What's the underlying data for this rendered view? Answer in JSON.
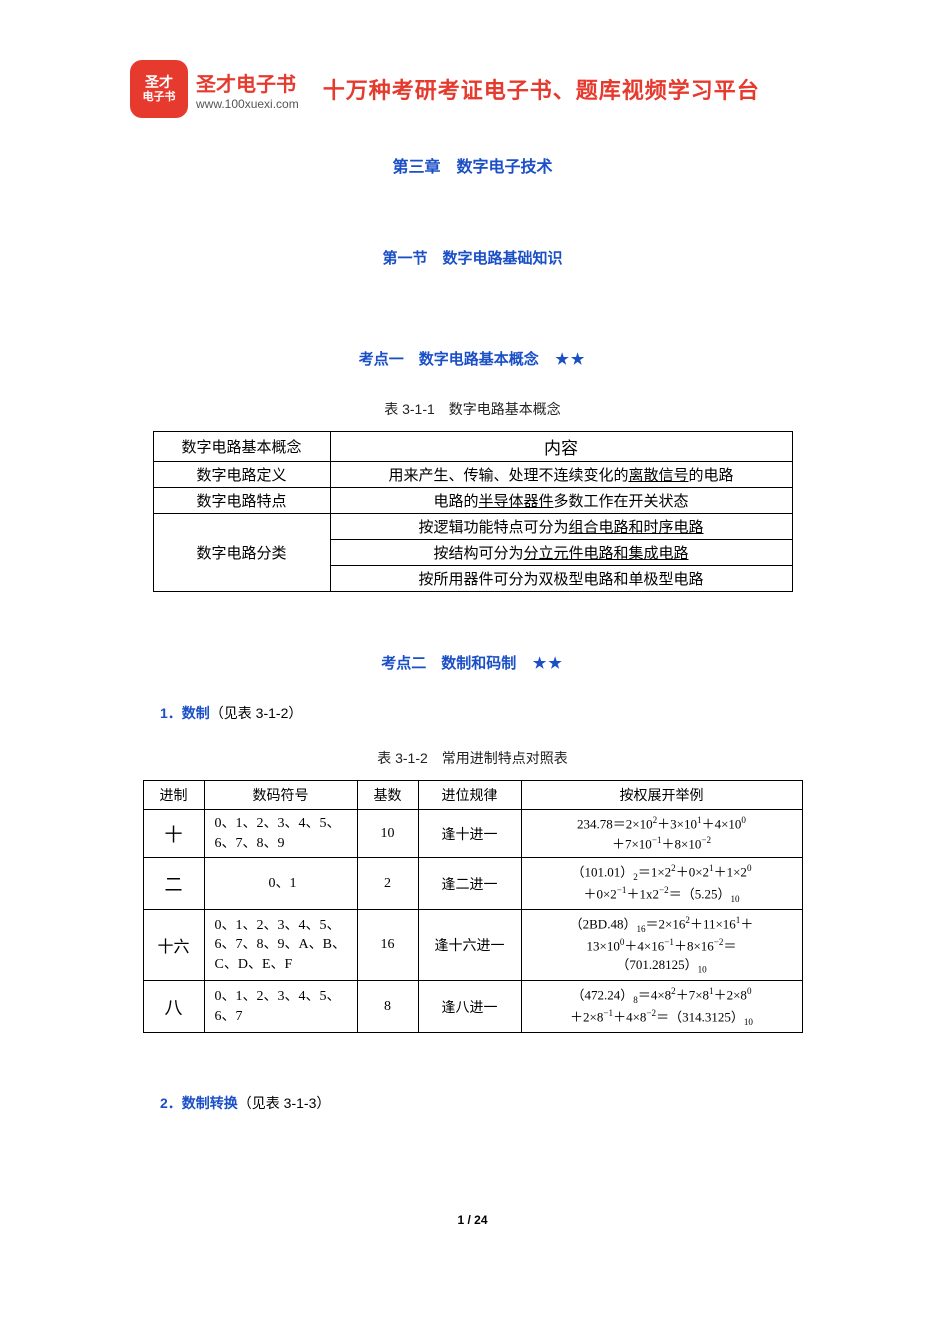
{
  "header": {
    "logo_line1": "圣才",
    "logo_line2": "电子书",
    "brand_cn": "圣才电子书",
    "brand_url": "www.100xuexi.com",
    "title": "十万种考研考证电子书、题库视频学习平台"
  },
  "chapter_title": "第三章　数字电子技术",
  "section_title": "第一节　数字电路基础知识",
  "point1": {
    "title_prefix": "考点一　数字电路基本概念",
    "stars": "★★",
    "table_caption": "表 3-1-1　数字电路基本概念",
    "header_col1": "数字电路基本概念",
    "header_col2": "内容",
    "rows": [
      {
        "c1": "数字电路定义",
        "c2_pre": "用来产生、传输、处理不连续变化的",
        "c2_u": "离散信号",
        "c2_post": "的电路"
      },
      {
        "c1": "数字电路特点",
        "c2_pre": "电路的",
        "c2_u": "半导体器件",
        "c2_post": "多数工作在开关状态"
      },
      {
        "c1": "数字电路分类",
        "lines": [
          {
            "pre": "按逻辑功能特点可分为",
            "u": "组合电路和时序电路",
            "post": ""
          },
          {
            "pre": "按结构可分为",
            "u": "分立元件电路和集成电路",
            "post": ""
          },
          {
            "pre": "按所用器件可分为双极型电路和单极型电路",
            "u": "",
            "post": ""
          }
        ]
      }
    ]
  },
  "point2": {
    "title_prefix": "考点二　数制和码制",
    "stars": "★★",
    "sub1_num": "1．",
    "sub1_label": "数制",
    "sub1_note": "（见表 3-1-2）",
    "table_caption": "表 3-1-2　常用进制特点对照表",
    "headers": [
      "进制",
      "数码符号",
      "基数",
      "进位规律",
      "按权展开举例"
    ],
    "rows": [
      {
        "base_name": "十",
        "symbols": "0、1、2、3、4、5、6、7、8、9",
        "radix": "10",
        "rule": "逢十进一",
        "example": "234.78＝2×10<sup>2</sup>＋3×10<sup>1</sup>＋4×10<sup>0</sup><br>＋7×10<sup>−1</sup>＋8×10<sup>−2</sup>"
      },
      {
        "base_name": "二",
        "symbols": "0、1",
        "radix": "2",
        "rule": "逢二进一",
        "example": "（101.01）<sub>2</sub>＝1×2<sup>2</sup>＋0×2<sup>1</sup>＋1×2<sup>0</sup><br>＋0×2<sup>−1</sup>＋1x2<sup>−2</sup>＝（5.25）<sub>10</sub>"
      },
      {
        "base_name": "十六",
        "symbols": "0、1、2、3、4、5、6、7、8、9、A、B、C、D、E、F",
        "radix": "16",
        "rule": "逢十六进一",
        "example": "（2BD.48）<sub>16</sub>＝2×16<sup>2</sup>＋11×16<sup>1</sup>＋<br>13×10<sup>0</sup>＋4×16<sup>−1</sup>＋8×16<sup>−2</sup>＝<br>（701.28125）<sub>10</sub>"
      },
      {
        "base_name": "八",
        "symbols": "0、1、2、3、4、5、6、7",
        "radix": "8",
        "rule": "逢八进一",
        "example": "（472.24）<sub>8</sub>＝4×8<sup>2</sup>＋7×8<sup>1</sup>＋2×8<sup>0</sup><br>＋2×8<sup>−1</sup>＋4×8<sup>−2</sup>＝（314.3125）<sub>10</sub>"
      }
    ],
    "sub2_num": "2．",
    "sub2_label": "数制转换",
    "sub2_note": "（见表 3-1-3）"
  },
  "footer": "1 / 24"
}
